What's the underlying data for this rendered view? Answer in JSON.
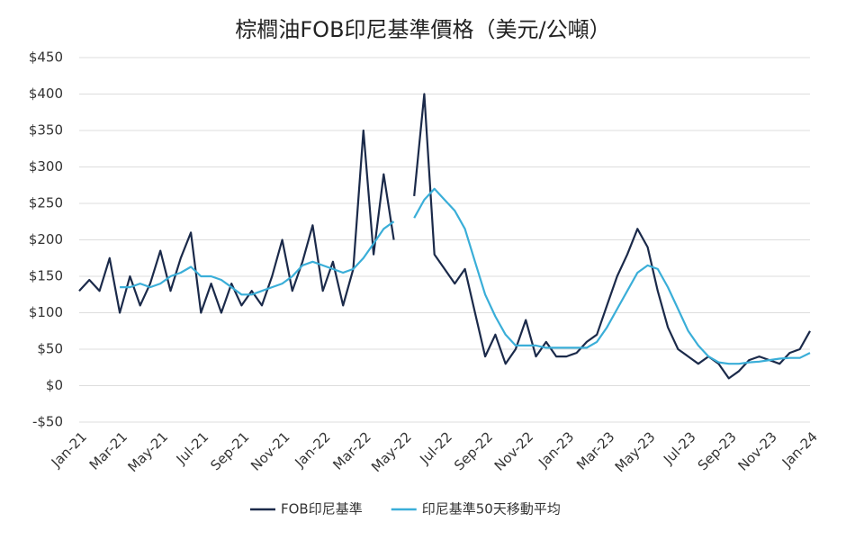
{
  "chart_data": {
    "type": "line",
    "title": "棕櫚油FOB印尼基準價格（美元/公噸）",
    "x": [
      0,
      0.5,
      1,
      1.5,
      2,
      2.5,
      3,
      3.5,
      4,
      4.5,
      5,
      5.5,
      6,
      6.5,
      7,
      7.5,
      8,
      8.5,
      9,
      9.5,
      10,
      10.5,
      11,
      11.5,
      12,
      12.5,
      13,
      13.5,
      14,
      14.5,
      15,
      15.5,
      16,
      16.5,
      17,
      17.5,
      18,
      18.5,
      19,
      19.5,
      20,
      20.5,
      21,
      21.5,
      22,
      22.5,
      23,
      23.5,
      24,
      24.5,
      25,
      25.5,
      26,
      26.5,
      27,
      27.5,
      28,
      28.5,
      29,
      29.5,
      30,
      30.5,
      31,
      31.5,
      32,
      32.5,
      33,
      33.5,
      34,
      34.5,
      35,
      35.5,
      36
    ],
    "series": [
      {
        "name": "FOB印尼基準",
        "color": "#1b2a4a",
        "values": [
          130,
          145,
          130,
          175,
          100,
          150,
          110,
          140,
          185,
          130,
          175,
          210,
          100,
          140,
          100,
          140,
          110,
          130,
          110,
          150,
          200,
          130,
          170,
          220,
          130,
          170,
          110,
          160,
          350,
          180,
          290,
          200,
          null,
          260,
          400,
          180,
          160,
          140,
          160,
          100,
          40,
          70,
          30,
          50,
          90,
          40,
          60,
          40,
          40,
          45,
          60,
          70,
          110,
          150,
          180,
          215,
          190,
          130,
          80,
          50,
          40,
          30,
          40,
          30,
          10,
          20,
          35,
          40,
          35,
          30,
          45,
          50,
          75
        ]
      },
      {
        "name": "印尼基準50天移動平均",
        "color": "#3aaed8",
        "values": [
          null,
          null,
          null,
          null,
          135,
          135,
          140,
          135,
          140,
          150,
          155,
          163,
          150,
          150,
          145,
          135,
          125,
          125,
          130,
          135,
          140,
          150,
          165,
          170,
          165,
          160,
          155,
          160,
          175,
          195,
          215,
          225,
          null,
          230,
          255,
          270,
          255,
          240,
          215,
          170,
          125,
          95,
          70,
          55,
          55,
          55,
          52,
          52,
          52,
          52,
          52,
          60,
          80,
          105,
          130,
          155,
          165,
          160,
          135,
          105,
          75,
          55,
          40,
          32,
          30,
          30,
          32,
          33,
          35,
          37,
          38,
          38,
          45
        ]
      }
    ],
    "xlim": [
      0,
      36
    ],
    "xticks": [
      {
        "value": 0,
        "label": "Jan-21"
      },
      {
        "value": 2,
        "label": "Mar-21"
      },
      {
        "value": 4,
        "label": "May-21"
      },
      {
        "value": 6,
        "label": "Jul-21"
      },
      {
        "value": 8,
        "label": "Sep-21"
      },
      {
        "value": 10,
        "label": "Nov-21"
      },
      {
        "value": 12,
        "label": "Jan-22"
      },
      {
        "value": 14,
        "label": "Mar-22"
      },
      {
        "value": 16,
        "label": "May-22"
      },
      {
        "value": 18,
        "label": "Jul-22"
      },
      {
        "value": 20,
        "label": "Sep-22"
      },
      {
        "value": 22,
        "label": "Nov-22"
      },
      {
        "value": 24,
        "label": "Jan-23"
      },
      {
        "value": 26,
        "label": "Mar-23"
      },
      {
        "value": 28,
        "label": "May-23"
      },
      {
        "value": 30,
        "label": "Jul-23"
      },
      {
        "value": 32,
        "label": "Sep-23"
      },
      {
        "value": 34,
        "label": "Nov-23"
      },
      {
        "value": 36,
        "label": "Jan-24"
      }
    ],
    "ylim": [
      -50,
      450
    ],
    "yticks": [
      {
        "value": -50,
        "label": "-$50"
      },
      {
        "value": 0,
        "label": "$0"
      },
      {
        "value": 50,
        "label": "$50"
      },
      {
        "value": 100,
        "label": "$100"
      },
      {
        "value": 150,
        "label": "$150"
      },
      {
        "value": 200,
        "label": "$200"
      },
      {
        "value": 250,
        "label": "$250"
      },
      {
        "value": 300,
        "label": "$300"
      },
      {
        "value": 350,
        "label": "$350"
      },
      {
        "value": 400,
        "label": "$400"
      },
      {
        "value": 450,
        "label": "$450"
      }
    ],
    "grid": true,
    "legend": "bottom"
  }
}
